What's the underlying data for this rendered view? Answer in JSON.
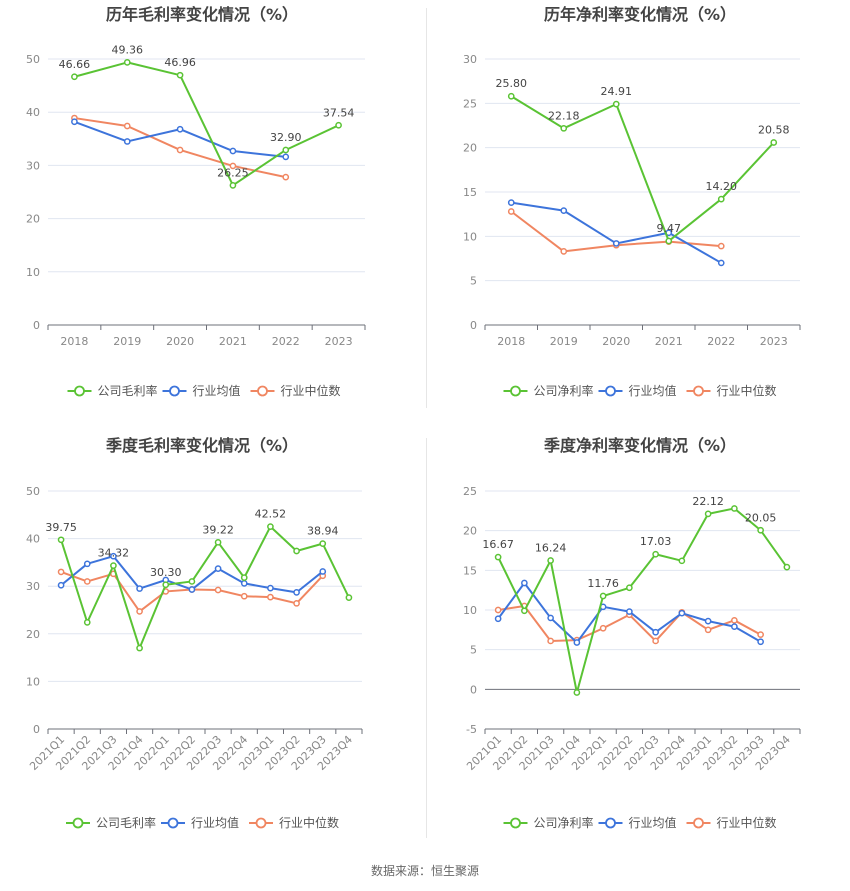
{
  "colors": {
    "company": "#5ac334",
    "industry_avg": "#3d74db",
    "industry_median": "#f08661"
  },
  "footer": "数据来源：恒生聚源",
  "chart_data": [
    {
      "type": "line",
      "title": "历年毛利率变化情况（%）",
      "categories": [
        "2018",
        "2019",
        "2020",
        "2021",
        "2022",
        "2023"
      ],
      "ylim": [
        0,
        50
      ],
      "yticks": [
        0,
        10,
        20,
        30,
        40,
        50
      ],
      "rotate_x": false,
      "grid": true,
      "legend": "bottom-center",
      "series": [
        {
          "name": "公司毛利率",
          "color": "#5ac334",
          "values": [
            46.66,
            49.36,
            46.96,
            26.25,
            32.9,
            37.54
          ],
          "labels": [
            "46.66",
            "49.36",
            "46.96",
            "26.25",
            "32.90",
            "37.54"
          ]
        },
        {
          "name": "行业均值",
          "color": "#3d74db",
          "values": [
            38.2,
            34.5,
            36.8,
            32.7,
            31.6,
            null
          ]
        },
        {
          "name": "行业中位数",
          "color": "#f08661",
          "values": [
            38.9,
            37.4,
            32.9,
            29.9,
            27.8,
            null
          ]
        }
      ]
    },
    {
      "type": "line",
      "title": "历年净利率变化情况（%）",
      "categories": [
        "2018",
        "2019",
        "2020",
        "2021",
        "2022",
        "2023"
      ],
      "ylim": [
        0,
        30
      ],
      "yticks": [
        0,
        5,
        10,
        15,
        20,
        25,
        30
      ],
      "rotate_x": false,
      "grid": true,
      "legend": "bottom-center",
      "series": [
        {
          "name": "公司净利率",
          "color": "#5ac334",
          "values": [
            25.8,
            22.18,
            24.91,
            9.47,
            14.2,
            20.58
          ],
          "labels": [
            "25.80",
            "22.18",
            "24.91",
            "9.47",
            "14.20",
            "20.58"
          ]
        },
        {
          "name": "行业均值",
          "color": "#3d74db",
          "values": [
            13.8,
            12.9,
            9.2,
            10.4,
            7.0,
            null
          ]
        },
        {
          "name": "行业中位数",
          "color": "#f08661",
          "values": [
            12.8,
            8.3,
            9.0,
            9.4,
            8.9,
            null
          ]
        }
      ]
    },
    {
      "type": "line",
      "title": "季度毛利率变化情况（%）",
      "categories": [
        "2021Q1",
        "2021Q2",
        "2021Q3",
        "2021Q4",
        "2022Q1",
        "2022Q2",
        "2022Q3",
        "2022Q4",
        "2023Q1",
        "2023Q2",
        "2023Q3",
        "2023Q4"
      ],
      "ylim": [
        0,
        50
      ],
      "yticks": [
        0,
        10,
        20,
        30,
        40,
        50
      ],
      "rotate_x": true,
      "grid": true,
      "legend": "bottom-center",
      "series": [
        {
          "name": "公司毛利率",
          "color": "#5ac334",
          "values": [
            39.75,
            22.4,
            34.32,
            17.0,
            30.3,
            31.0,
            39.22,
            31.8,
            42.52,
            37.4,
            38.94,
            27.6
          ],
          "labels": [
            "39.75",
            "",
            "34.32",
            "",
            "30.30",
            "",
            "39.22",
            "",
            "42.52",
            "",
            "38.94",
            ""
          ]
        },
        {
          "name": "行业均值",
          "color": "#3d74db",
          "values": [
            30.2,
            34.7,
            36.3,
            29.5,
            31.3,
            29.3,
            33.7,
            30.6,
            29.6,
            28.7,
            33.1,
            null
          ]
        },
        {
          "name": "行业中位数",
          "color": "#f08661",
          "values": [
            33.0,
            31.0,
            32.6,
            24.7,
            28.9,
            29.3,
            29.2,
            27.9,
            27.7,
            26.4,
            32.2,
            null
          ]
        }
      ]
    },
    {
      "type": "line",
      "title": "季度净利率变化情况（%）",
      "categories": [
        "2021Q1",
        "2021Q2",
        "2021Q3",
        "2021Q4",
        "2022Q1",
        "2022Q2",
        "2022Q3",
        "2022Q4",
        "2023Q1",
        "2023Q2",
        "2023Q3",
        "2023Q4"
      ],
      "ylim": [
        -5,
        25
      ],
      "yticks": [
        -5,
        0,
        5,
        10,
        15,
        20,
        25
      ],
      "rotate_x": true,
      "grid": true,
      "legend": "bottom-center",
      "series": [
        {
          "name": "公司净利率",
          "color": "#5ac334",
          "values": [
            16.67,
            9.9,
            16.24,
            -0.4,
            11.76,
            12.8,
            17.03,
            16.2,
            22.12,
            22.8,
            20.05,
            15.4
          ],
          "labels": [
            "16.67",
            "",
            "16.24",
            "",
            "11.76",
            "",
            "17.03",
            "",
            "22.12",
            "",
            "20.05",
            ""
          ]
        },
        {
          "name": "行业均值",
          "color": "#3d74db",
          "values": [
            8.9,
            13.4,
            9.0,
            5.9,
            10.4,
            9.8,
            7.2,
            9.6,
            8.6,
            7.9,
            6.0,
            null
          ]
        },
        {
          "name": "行业中位数",
          "color": "#f08661",
          "values": [
            10.0,
            10.5,
            6.1,
            6.2,
            7.7,
            9.4,
            6.1,
            9.7,
            7.5,
            8.7,
            6.9,
            null
          ]
        }
      ]
    }
  ]
}
